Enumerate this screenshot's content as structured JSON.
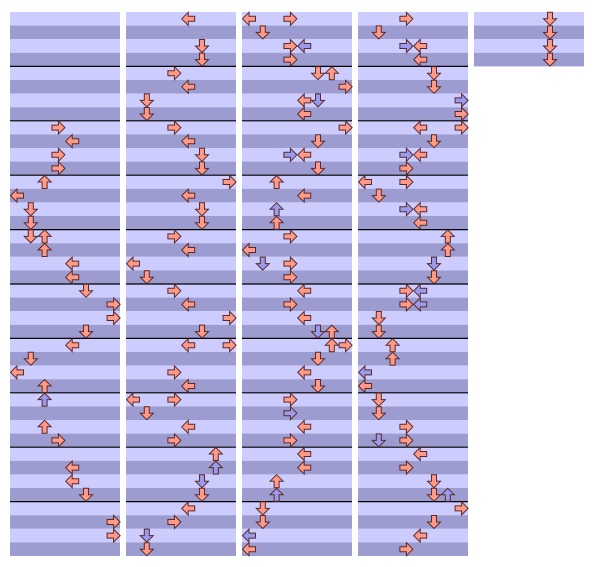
{
  "note_colors": {
    "red": "#ff9a88",
    "blue": "#9a9aee"
  },
  "columns": [
    {
      "stripes": 40,
      "notes": [
        [
          8,
          3,
          "red"
        ],
        [
          9,
          4,
          "red"
        ],
        [
          10,
          3,
          "red"
        ],
        [
          11,
          3,
          "red"
        ],
        [
          12,
          2,
          "red"
        ],
        [
          13,
          0,
          "red"
        ],
        [
          14,
          1,
          "red"
        ],
        [
          15,
          1,
          "red"
        ],
        [
          16,
          1,
          "red"
        ],
        [
          16,
          2,
          "red"
        ],
        [
          17,
          2,
          "red"
        ],
        [
          18,
          4,
          "red"
        ],
        [
          19,
          4,
          "red"
        ],
        [
          20,
          5,
          "red"
        ],
        [
          21,
          7,
          "red"
        ],
        [
          22,
          7,
          "red"
        ],
        [
          23,
          5,
          "red"
        ],
        [
          24,
          4,
          "red"
        ],
        [
          25,
          1,
          "red"
        ],
        [
          26,
          0,
          "red"
        ],
        [
          27,
          2,
          "red"
        ],
        [
          28,
          2,
          "blue"
        ],
        [
          30,
          2,
          "red"
        ],
        [
          31,
          3,
          "red"
        ],
        [
          33,
          4,
          "red"
        ],
        [
          34,
          4,
          "red"
        ],
        [
          35,
          5,
          "red"
        ],
        [
          37,
          7,
          "red"
        ],
        [
          38,
          7,
          "red"
        ]
      ]
    },
    {
      "stripes": 40,
      "notes": [
        [
          0,
          4,
          "red"
        ],
        [
          2,
          5,
          "red"
        ],
        [
          3,
          5,
          "red"
        ],
        [
          4,
          3,
          "red"
        ],
        [
          5,
          4,
          "red"
        ],
        [
          6,
          1,
          "red"
        ],
        [
          7,
          1,
          "red"
        ],
        [
          8,
          3,
          "red"
        ],
        [
          9,
          4,
          "red"
        ],
        [
          10,
          5,
          "red"
        ],
        [
          11,
          5,
          "red"
        ],
        [
          12,
          7,
          "red"
        ],
        [
          13,
          4,
          "red"
        ],
        [
          14,
          5,
          "red"
        ],
        [
          15,
          5,
          "red"
        ],
        [
          16,
          3,
          "red"
        ],
        [
          17,
          4,
          "red"
        ],
        [
          18,
          0,
          "red"
        ],
        [
          19,
          1,
          "red"
        ],
        [
          20,
          3,
          "red"
        ],
        [
          21,
          4,
          "red"
        ],
        [
          22,
          7,
          "red"
        ],
        [
          23,
          5,
          "red"
        ],
        [
          24,
          4,
          "red"
        ],
        [
          24,
          7,
          "red"
        ],
        [
          26,
          3,
          "red"
        ],
        [
          27,
          4,
          "red"
        ],
        [
          28,
          0,
          "red"
        ],
        [
          28,
          3,
          "red"
        ],
        [
          29,
          1,
          "red"
        ],
        [
          30,
          4,
          "red"
        ],
        [
          31,
          3,
          "red"
        ],
        [
          32,
          6,
          "red"
        ],
        [
          33,
          6,
          "blue"
        ],
        [
          34,
          5,
          "blue"
        ],
        [
          35,
          5,
          "red"
        ],
        [
          36,
          4,
          "red"
        ],
        [
          37,
          3,
          "red"
        ],
        [
          38,
          1,
          "blue"
        ],
        [
          39,
          1,
          "red"
        ]
      ]
    },
    {
      "stripes": 40,
      "notes": [
        [
          0,
          0,
          "red"
        ],
        [
          0,
          3,
          "red"
        ],
        [
          1,
          1,
          "red"
        ],
        [
          2,
          3,
          "red"
        ],
        [
          2,
          4,
          "blue"
        ],
        [
          3,
          3,
          "red"
        ],
        [
          4,
          5,
          "red"
        ],
        [
          4,
          6,
          "red"
        ],
        [
          5,
          7,
          "red"
        ],
        [
          6,
          4,
          "red"
        ],
        [
          6,
          5,
          "blue"
        ],
        [
          7,
          4,
          "red"
        ],
        [
          8,
          7,
          "red"
        ],
        [
          9,
          5,
          "red"
        ],
        [
          10,
          3,
          "blue"
        ],
        [
          10,
          4,
          "red"
        ],
        [
          11,
          5,
          "red"
        ],
        [
          12,
          2,
          "red"
        ],
        [
          13,
          4,
          "red"
        ],
        [
          14,
          2,
          "blue"
        ],
        [
          15,
          2,
          "red"
        ],
        [
          16,
          3,
          "red"
        ],
        [
          17,
          0,
          "red"
        ],
        [
          18,
          1,
          "blue"
        ],
        [
          18,
          3,
          "red"
        ],
        [
          19,
          3,
          "red"
        ],
        [
          20,
          4,
          "red"
        ],
        [
          21,
          3,
          "red"
        ],
        [
          22,
          4,
          "red"
        ],
        [
          23,
          5,
          "blue"
        ],
        [
          23,
          6,
          "red"
        ],
        [
          24,
          6,
          "red"
        ],
        [
          24,
          7,
          "red"
        ],
        [
          25,
          5,
          "red"
        ],
        [
          26,
          4,
          "red"
        ],
        [
          27,
          5,
          "red"
        ],
        [
          28,
          3,
          "red"
        ],
        [
          29,
          3,
          "blue"
        ],
        [
          30,
          4,
          "red"
        ],
        [
          31,
          3,
          "red"
        ],
        [
          32,
          4,
          "red"
        ],
        [
          33,
          4,
          "red"
        ],
        [
          34,
          2,
          "red"
        ],
        [
          35,
          2,
          "blue"
        ],
        [
          36,
          1,
          "red"
        ],
        [
          37,
          1,
          "red"
        ],
        [
          38,
          0,
          "blue"
        ],
        [
          39,
          0,
          "red"
        ]
      ]
    },
    {
      "stripes": 40,
      "notes": [
        [
          0,
          3,
          "red"
        ],
        [
          1,
          1,
          "red"
        ],
        [
          2,
          3,
          "blue"
        ],
        [
          2,
          4,
          "red"
        ],
        [
          3,
          4,
          "red"
        ],
        [
          4,
          5,
          "red"
        ],
        [
          5,
          5,
          "red"
        ],
        [
          6,
          7,
          "blue"
        ],
        [
          7,
          7,
          "red"
        ],
        [
          8,
          4,
          "red"
        ],
        [
          8,
          7,
          "red"
        ],
        [
          9,
          5,
          "red"
        ],
        [
          10,
          3,
          "blue"
        ],
        [
          10,
          4,
          "red"
        ],
        [
          11,
          3,
          "red"
        ],
        [
          12,
          0,
          "red"
        ],
        [
          12,
          3,
          "red"
        ],
        [
          13,
          1,
          "red"
        ],
        [
          14,
          3,
          "blue"
        ],
        [
          14,
          4,
          "red"
        ],
        [
          15,
          4,
          "red"
        ],
        [
          16,
          6,
          "red"
        ],
        [
          17,
          6,
          "red"
        ],
        [
          18,
          5,
          "blue"
        ],
        [
          19,
          5,
          "red"
        ],
        [
          20,
          3,
          "red"
        ],
        [
          20,
          4,
          "blue"
        ],
        [
          21,
          3,
          "red"
        ],
        [
          21,
          4,
          "blue"
        ],
        [
          22,
          1,
          "red"
        ],
        [
          23,
          1,
          "red"
        ],
        [
          24,
          2,
          "red"
        ],
        [
          25,
          2,
          "red"
        ],
        [
          26,
          0,
          "blue"
        ],
        [
          27,
          0,
          "red"
        ],
        [
          28,
          1,
          "red"
        ],
        [
          29,
          1,
          "red"
        ],
        [
          30,
          3,
          "red"
        ],
        [
          31,
          1,
          "blue"
        ],
        [
          31,
          3,
          "red"
        ],
        [
          32,
          4,
          "red"
        ],
        [
          33,
          3,
          "red"
        ],
        [
          34,
          5,
          "red"
        ],
        [
          35,
          5,
          "red"
        ],
        [
          35,
          6,
          "blue"
        ],
        [
          36,
          7,
          "red"
        ],
        [
          37,
          5,
          "red"
        ],
        [
          38,
          4,
          "red"
        ],
        [
          39,
          3,
          "red"
        ]
      ]
    },
    {
      "stripes": 4,
      "notes": [
        [
          0,
          5,
          "red"
        ],
        [
          1,
          5,
          "red"
        ],
        [
          2,
          5,
          "red"
        ],
        [
          3,
          5,
          "red"
        ]
      ]
    }
  ]
}
